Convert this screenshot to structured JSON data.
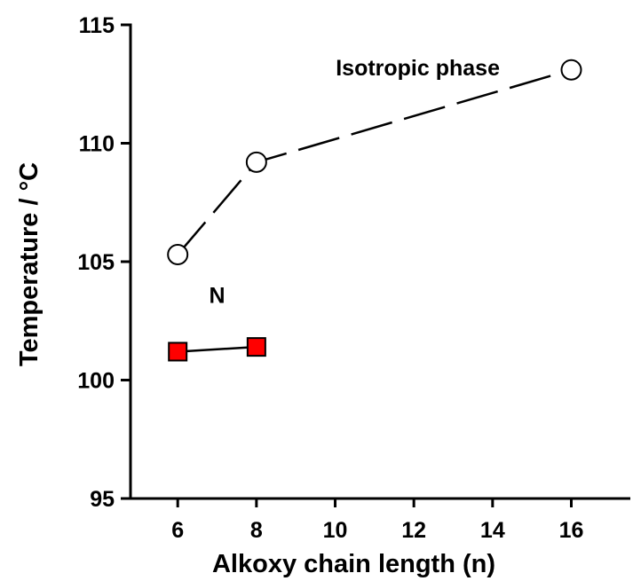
{
  "chart_data": {
    "type": "line",
    "title": "",
    "xlabel": "Alkoxy chain length (n)",
    "ylabel": "Temperature / °C",
    "xlim": [
      4.8,
      17.5
    ],
    "ylim": [
      95,
      115
    ],
    "xticks": [
      6,
      8,
      10,
      12,
      14,
      16
    ],
    "yticks": [
      95,
      100,
      105,
      110,
      115
    ],
    "grid": false,
    "legend": "none",
    "series": [
      {
        "x": [
          6,
          8,
          16
        ],
        "y": [
          105.3,
          109.2,
          113.1
        ],
        "marker": "circle-open",
        "line_style": "dashed",
        "color": "#000000"
      },
      {
        "x": [
          6,
          8
        ],
        "y": [
          101.2,
          101.4
        ],
        "marker": "square-filled",
        "line_style": "solid",
        "color": "#000000",
        "marker_fill": "#ff0000"
      }
    ],
    "annotations": [
      {
        "text": "Isotropic phase",
        "x": 12.1,
        "y": 113.2
      },
      {
        "text": "N",
        "x": 7.0,
        "y": 103.6
      }
    ]
  }
}
